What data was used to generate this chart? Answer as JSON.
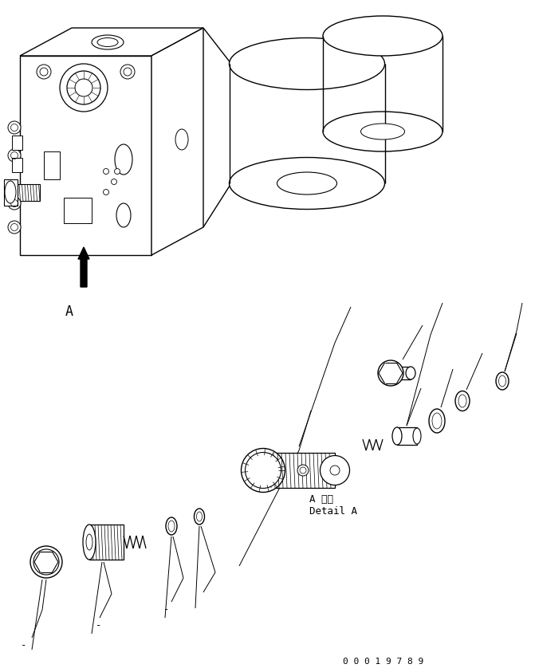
{
  "background_color": "#ffffff",
  "line_color": "#000000",
  "text_color": "#000000",
  "detail_text_line1": "A 詳細",
  "detail_text_line2": "Detail A",
  "serial_number": "0 0 0 1 9 7 8 9",
  "fig_width": 6.71,
  "fig_height": 8.43,
  "dpi": 100
}
